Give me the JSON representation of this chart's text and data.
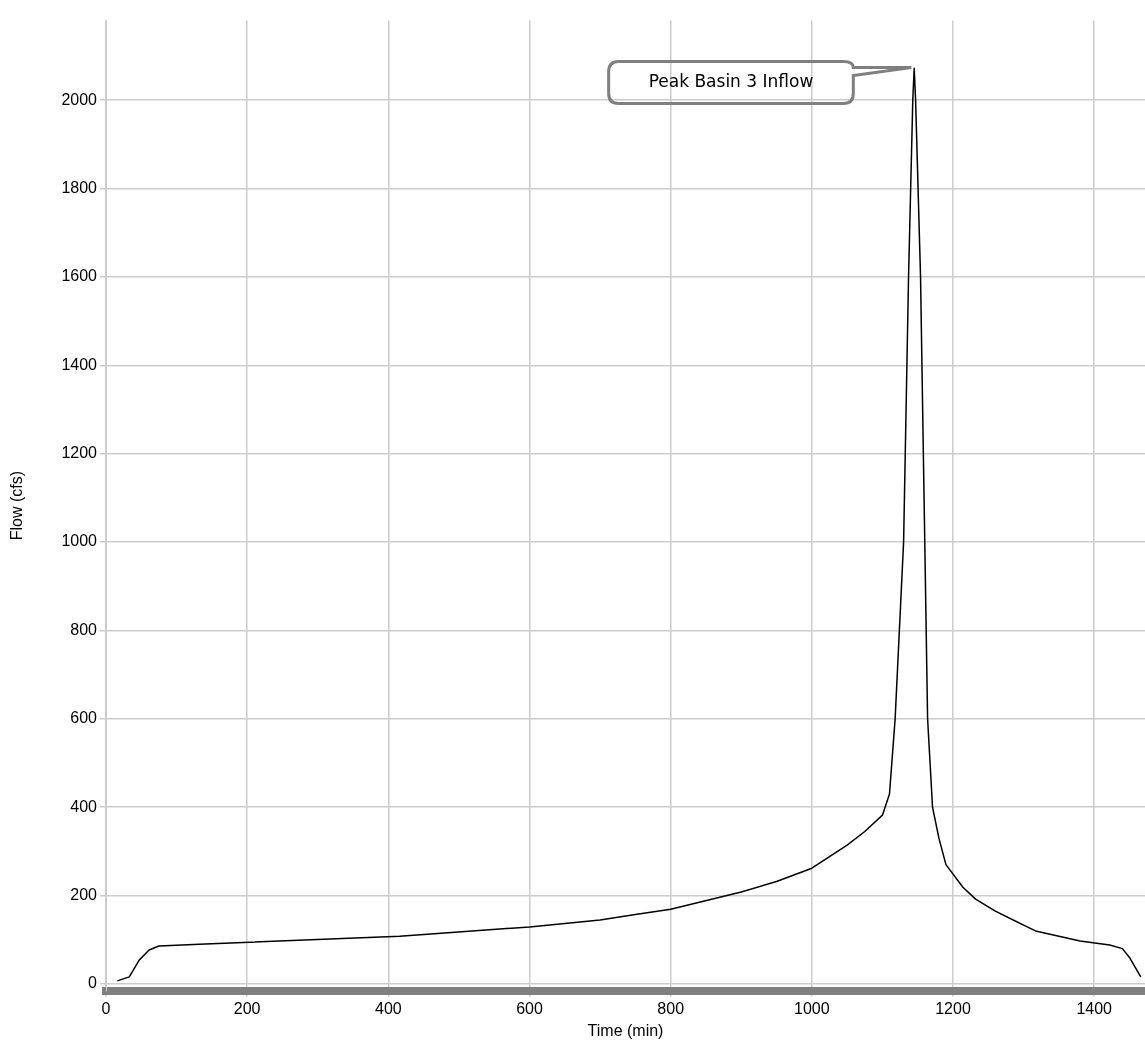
{
  "chart_data": {
    "type": "line",
    "xlabel": "Time (min)",
    "ylabel": "Flow (cfs)",
    "series": [
      {
        "color": "#000000",
        "x": [
          16,
          33,
          47,
          61,
          75,
          132,
          416,
          600,
          700,
          750,
          800,
          900,
          950,
          1000,
          1050,
          1075,
          1100,
          1110,
          1118,
          1130,
          1137,
          1143,
          1145,
          1147,
          1154,
          1160,
          1164,
          1171,
          1180,
          1190,
          1214,
          1232,
          1260,
          1300,
          1317,
          1380,
          1422,
          1440,
          1450,
          1466
        ],
        "values": [
          7,
          16,
          54,
          77,
          86,
          90,
          108,
          129,
          145,
          157,
          169,
          208,
          232,
          262,
          314,
          345,
          382,
          430,
          600,
          1000,
          1600,
          2000,
          2072,
          2000,
          1600,
          1000,
          600,
          400,
          330,
          270,
          219,
          192,
          165,
          133,
          120,
          97,
          88,
          80,
          60,
          16
        ]
      }
    ],
    "xlim": [
      0,
      1472
    ],
    "xticks": [
      0,
      200,
      400,
      600,
      800,
      1000,
      1200,
      1400
    ],
    "ylim": [
      -15,
      2180
    ],
    "yticks": [
      0,
      200,
      400,
      600,
      800,
      1000,
      1200,
      1400,
      1600,
      1800,
      2000
    ],
    "grid": true,
    "legend": false,
    "marker": "none",
    "line_style": "solid",
    "annotations": [
      "Peak Basin 3 Inflow"
    ]
  }
}
